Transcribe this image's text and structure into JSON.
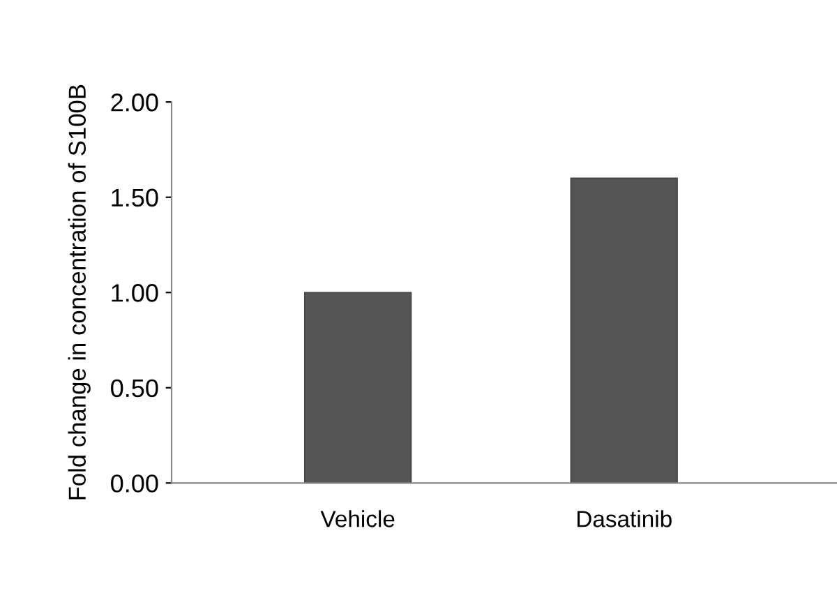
{
  "chart_data": {
    "type": "bar",
    "ylabel": "Fold change in concentration of S100B",
    "categories": [
      "Vehicle",
      "Dasatinib"
    ],
    "values": [
      1.0,
      1.6
    ],
    "color": "#555555",
    "ylim": [
      0,
      2
    ],
    "yticks": [
      {
        "value": 0,
        "label": "0.00"
      },
      {
        "value": 0.5,
        "label": "0.50"
      },
      {
        "value": 1,
        "label": "1.00"
      },
      {
        "value": 1.5,
        "label": "1.50"
      },
      {
        "value": 2,
        "label": "2.00"
      }
    ],
    "grid": false
  }
}
